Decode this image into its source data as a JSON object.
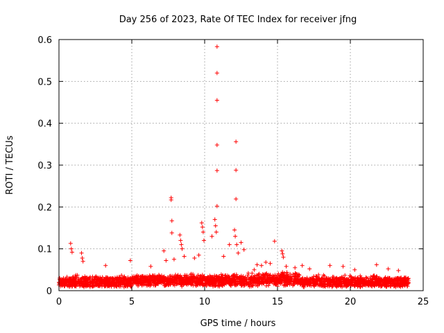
{
  "chart_data": {
    "type": "scatter",
    "title": "Day 256 of 2023, Rate Of TEC Index for receiver jfng",
    "xlabel": "GPS time / hours",
    "ylabel": "ROTI / TECUs",
    "xlim": [
      0,
      25
    ],
    "ylim": [
      0,
      0.6
    ],
    "xticks": [
      "0",
      "5",
      "10",
      "15",
      "20",
      "25"
    ],
    "yticks": [
      "0",
      "0.1",
      "0.2",
      "0.3",
      "0.4",
      "0.5",
      "0.6"
    ],
    "grid": true,
    "marker": "plus",
    "color": "#ff0000",
    "series": [
      {
        "x": [
          10.85,
          10.85,
          10.85,
          10.85,
          10.85,
          10.85,
          12.15,
          12.15,
          12.15,
          7.7,
          7.7,
          7.75,
          7.75,
          8.3,
          8.35,
          8.4,
          8.45,
          9.8,
          9.85,
          9.9,
          9.95,
          10.7,
          10.75,
          10.8,
          12.05,
          12.1,
          12.2,
          0.8,
          0.85,
          0.9,
          1.55,
          1.6,
          1.65,
          7.2,
          7.35,
          11.7,
          12.5,
          13.9,
          14.8,
          15.3,
          15.35,
          15.4,
          16.7,
          18.6,
          19.5,
          21.8,
          23.3,
          3.2,
          4.9,
          6.3,
          8.6,
          13.4,
          14.5,
          16.2,
          17.2,
          20.3,
          22.6,
          11.3,
          12.7,
          13.6,
          14.2,
          15.6,
          9.3,
          9.6,
          7.9,
          12.3,
          10.5
        ],
        "y": [
          0.583,
          0.52,
          0.455,
          0.348,
          0.287,
          0.202,
          0.356,
          0.288,
          0.219,
          0.222,
          0.217,
          0.167,
          0.138,
          0.133,
          0.12,
          0.11,
          0.1,
          0.162,
          0.152,
          0.14,
          0.12,
          0.17,
          0.155,
          0.14,
          0.145,
          0.13,
          0.11,
          0.113,
          0.1,
          0.092,
          0.09,
          0.078,
          0.07,
          0.095,
          0.072,
          0.11,
          0.115,
          0.06,
          0.118,
          0.095,
          0.088,
          0.08,
          0.06,
          0.06,
          0.058,
          0.062,
          0.048,
          0.06,
          0.072,
          0.058,
          0.082,
          0.05,
          0.065,
          0.055,
          0.052,
          0.05,
          0.052,
          0.082,
          0.098,
          0.062,
          0.068,
          0.058,
          0.078,
          0.085,
          0.075,
          0.09,
          0.13
        ]
      }
    ]
  }
}
